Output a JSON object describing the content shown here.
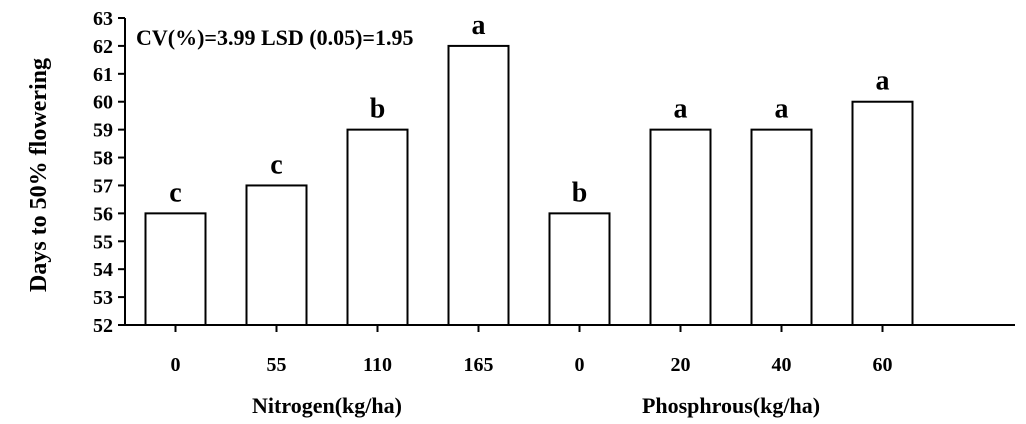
{
  "chart_data": {
    "type": "bar",
    "ylabel": "Days to 50% flowering",
    "ylim": [
      52,
      63
    ],
    "yticks": [
      52,
      53,
      54,
      55,
      56,
      57,
      58,
      59,
      60,
      61,
      62,
      63
    ],
    "annotation": "CV(%)=3.99 LSD (0.05)=1.95",
    "groups": [
      {
        "label": "Nitrogen(kg/ha)",
        "categories": [
          "0",
          "55",
          "110",
          "165"
        ],
        "values": [
          56,
          57,
          59,
          62
        ],
        "letters": [
          "c",
          "c",
          "b",
          "a"
        ]
      },
      {
        "label": "Phosphrous(kg/ha)",
        "categories": [
          "0",
          "20",
          "40",
          "60"
        ],
        "values": [
          56,
          59,
          59,
          60
        ],
        "letters": [
          "b",
          "a",
          "a",
          "a"
        ]
      }
    ],
    "grid": false,
    "legend": "none"
  }
}
